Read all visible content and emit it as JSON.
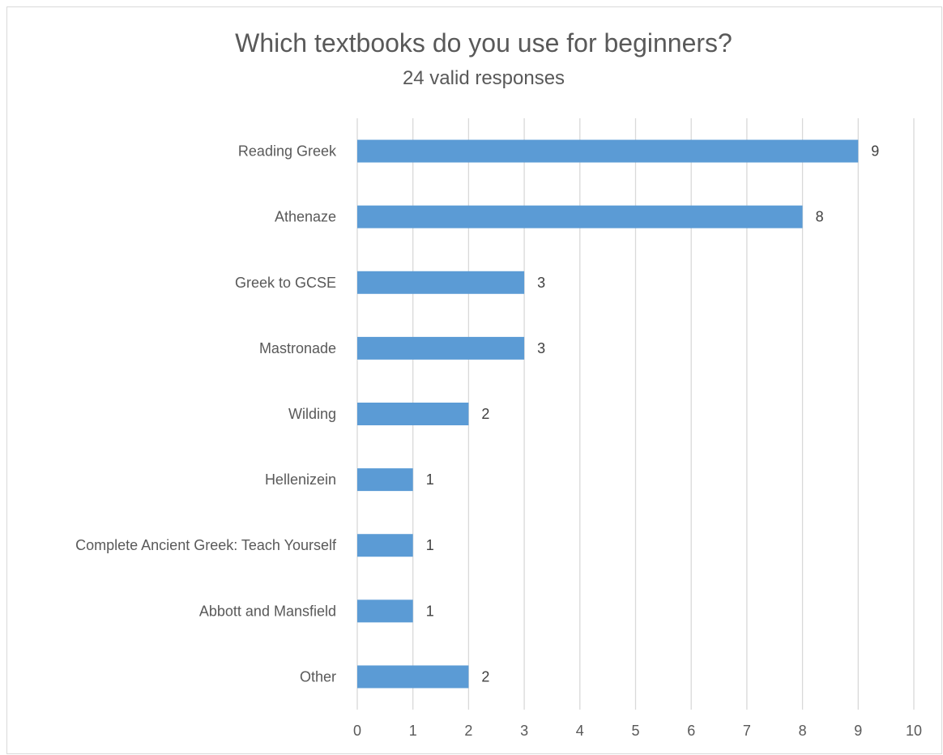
{
  "chart_data": {
    "type": "bar",
    "orientation": "horizontal",
    "title": "Which textbooks do you use for beginners?",
    "subtitle": "24 valid responses",
    "categories": [
      "Reading Greek",
      "Athenaze",
      "Greek to GCSE",
      "Mastronade",
      "Wilding",
      "Hellenizein",
      "Complete Ancient Greek: Teach Yourself",
      "Abbott and Mansfield",
      "Other"
    ],
    "values": [
      9,
      8,
      3,
      3,
      2,
      1,
      1,
      1,
      2
    ],
    "xlim": [
      0,
      10
    ],
    "xticks": [
      "0",
      "1",
      "2",
      "3",
      "4",
      "5",
      "6",
      "7",
      "8",
      "9",
      "10"
    ],
    "grid": true,
    "data_labels": true,
    "bar_color": "#5b9bd5",
    "grid_color": "#d9d9d9"
  }
}
